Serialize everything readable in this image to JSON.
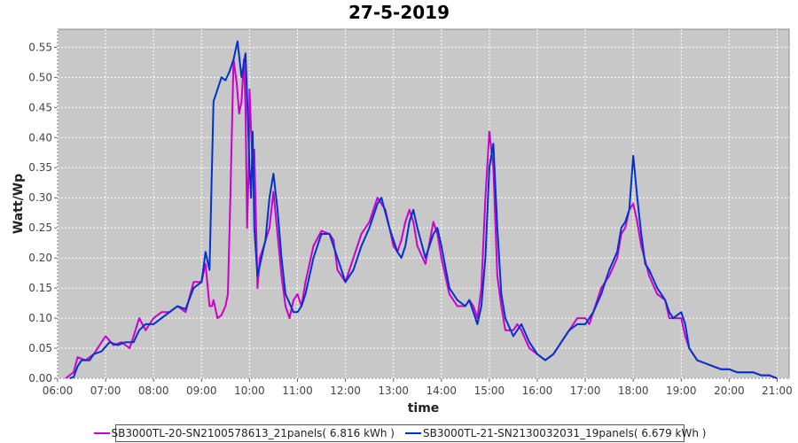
{
  "chart_data": {
    "type": "line",
    "title": "27-5-2019",
    "xlabel": "time",
    "ylabel": "Watt/Wp",
    "xlim": [
      "06:00",
      "21:15"
    ],
    "ylim": [
      0,
      0.58
    ],
    "x_ticks": [
      "06:00",
      "07:00",
      "08:00",
      "09:00",
      "10:00",
      "11:00",
      "12:00",
      "13:00",
      "14:00",
      "15:00",
      "16:00",
      "17:00",
      "18:00",
      "19:00",
      "20:00",
      "21:00"
    ],
    "y_ticks": [
      "0.00",
      "0.05",
      "0.10",
      "0.15",
      "0.20",
      "0.25",
      "0.30",
      "0.35",
      "0.40",
      "0.45",
      "0.50",
      "0.55"
    ],
    "grid": true,
    "background": "#c8c8c8",
    "legend_position": "bottom",
    "series": [
      {
        "name": "SB3000TL-20-SN2100578613_21panels( 6.816 kWh )",
        "color": "#cc00cc",
        "points": [
          [
            "06:10",
            0.0
          ],
          [
            "06:20",
            0.01
          ],
          [
            "06:25",
            0.035
          ],
          [
            "06:35",
            0.03
          ],
          [
            "06:45",
            0.04
          ],
          [
            "06:55",
            0.06
          ],
          [
            "07:00",
            0.07
          ],
          [
            "07:10",
            0.055
          ],
          [
            "07:20",
            0.06
          ],
          [
            "07:30",
            0.05
          ],
          [
            "07:35",
            0.07
          ],
          [
            "07:42",
            0.1
          ],
          [
            "07:50",
            0.08
          ],
          [
            "08:00",
            0.1
          ],
          [
            "08:10",
            0.11
          ],
          [
            "08:20",
            0.11
          ],
          [
            "08:30",
            0.12
          ],
          [
            "08:40",
            0.11
          ],
          [
            "08:50",
            0.16
          ],
          [
            "09:00",
            0.16
          ],
          [
            "09:05",
            0.19
          ],
          [
            "09:10",
            0.12
          ],
          [
            "09:13",
            0.12
          ],
          [
            "09:15",
            0.13
          ],
          [
            "09:20",
            0.1
          ],
          [
            "09:25",
            0.105
          ],
          [
            "09:30",
            0.12
          ],
          [
            "09:33",
            0.14
          ],
          [
            "09:36",
            0.3
          ],
          [
            "09:40",
            0.53
          ],
          [
            "09:44",
            0.49
          ],
          [
            "09:47",
            0.44
          ],
          [
            "09:50",
            0.46
          ],
          [
            "09:53",
            0.53
          ],
          [
            "09:55",
            0.45
          ],
          [
            "09:57",
            0.25
          ],
          [
            "09:59",
            0.35
          ],
          [
            "10:00",
            0.48
          ],
          [
            "10:02",
            0.41
          ],
          [
            "10:04",
            0.35
          ],
          [
            "10:06",
            0.38
          ],
          [
            "10:08",
            0.27
          ],
          [
            "10:10",
            0.15
          ],
          [
            "10:13",
            0.2
          ],
          [
            "10:18",
            0.22
          ],
          [
            "10:25",
            0.25
          ],
          [
            "10:30",
            0.31
          ],
          [
            "10:35",
            0.24
          ],
          [
            "10:40",
            0.17
          ],
          [
            "10:45",
            0.12
          ],
          [
            "10:50",
            0.1
          ],
          [
            "10:55",
            0.13
          ],
          [
            "11:00",
            0.14
          ],
          [
            "11:05",
            0.12
          ],
          [
            "11:10",
            0.16
          ],
          [
            "11:20",
            0.22
          ],
          [
            "11:30",
            0.245
          ],
          [
            "11:40",
            0.24
          ],
          [
            "11:45",
            0.23
          ],
          [
            "11:50",
            0.18
          ],
          [
            "12:00",
            0.16
          ],
          [
            "12:10",
            0.2
          ],
          [
            "12:20",
            0.24
          ],
          [
            "12:30",
            0.26
          ],
          [
            "12:40",
            0.3
          ],
          [
            "12:50",
            0.28
          ],
          [
            "13:00",
            0.22
          ],
          [
            "13:05",
            0.21
          ],
          [
            "13:10",
            0.23
          ],
          [
            "13:15",
            0.26
          ],
          [
            "13:20",
            0.28
          ],
          [
            "13:25",
            0.26
          ],
          [
            "13:30",
            0.22
          ],
          [
            "13:40",
            0.19
          ],
          [
            "13:50",
            0.26
          ],
          [
            "13:55",
            0.24
          ],
          [
            "14:00",
            0.2
          ],
          [
            "14:10",
            0.14
          ],
          [
            "14:20",
            0.12
          ],
          [
            "14:30",
            0.12
          ],
          [
            "14:35",
            0.13
          ],
          [
            "14:40",
            0.12
          ],
          [
            "14:45",
            0.1
          ],
          [
            "14:50",
            0.15
          ],
          [
            "14:55",
            0.3
          ],
          [
            "15:00",
            0.41
          ],
          [
            "15:05",
            0.35
          ],
          [
            "15:10",
            0.17
          ],
          [
            "15:15",
            0.12
          ],
          [
            "15:20",
            0.08
          ],
          [
            "15:30",
            0.08
          ],
          [
            "15:35",
            0.09
          ],
          [
            "15:40",
            0.08
          ],
          [
            "15:50",
            0.05
          ],
          [
            "16:00",
            0.04
          ],
          [
            "16:10",
            0.03
          ],
          [
            "16:20",
            0.04
          ],
          [
            "16:30",
            0.06
          ],
          [
            "16:40",
            0.08
          ],
          [
            "16:50",
            0.1
          ],
          [
            "17:00",
            0.1
          ],
          [
            "17:05",
            0.09
          ],
          [
            "17:10",
            0.11
          ],
          [
            "17:20",
            0.15
          ],
          [
            "17:30",
            0.17
          ],
          [
            "17:40",
            0.2
          ],
          [
            "17:45",
            0.24
          ],
          [
            "17:50",
            0.25
          ],
          [
            "17:55",
            0.28
          ],
          [
            "18:00",
            0.29
          ],
          [
            "18:05",
            0.26
          ],
          [
            "18:10",
            0.22
          ],
          [
            "18:20",
            0.17
          ],
          [
            "18:30",
            0.14
          ],
          [
            "18:40",
            0.13
          ],
          [
            "18:45",
            0.1
          ],
          [
            "18:50",
            0.1
          ],
          [
            "19:00",
            0.1
          ],
          [
            "19:05",
            0.07
          ],
          [
            "19:10",
            0.05
          ],
          [
            "19:20",
            0.03
          ],
          [
            "19:30",
            0.025
          ],
          [
            "19:40",
            0.02
          ],
          [
            "19:50",
            0.015
          ],
          [
            "20:00",
            0.015
          ],
          [
            "20:10",
            0.01
          ],
          [
            "20:20",
            0.01
          ],
          [
            "20:30",
            0.01
          ],
          [
            "20:40",
            0.005
          ],
          [
            "20:50",
            0.005
          ],
          [
            "21:00",
            0.0
          ]
        ]
      },
      {
        "name": "SB3000TL-21-SN2130032031_19panels( 6.679 kWh )",
        "color": "#0033cc",
        "points": [
          [
            "06:15",
            0.0
          ],
          [
            "06:20",
            0.002
          ],
          [
            "06:25",
            0.02
          ],
          [
            "06:30",
            0.03
          ],
          [
            "06:40",
            0.03
          ],
          [
            "06:45",
            0.04
          ],
          [
            "06:55",
            0.045
          ],
          [
            "07:05",
            0.06
          ],
          [
            "07:15",
            0.055
          ],
          [
            "07:25",
            0.06
          ],
          [
            "07:35",
            0.06
          ],
          [
            "07:42",
            0.08
          ],
          [
            "07:50",
            0.09
          ],
          [
            "08:00",
            0.09
          ],
          [
            "08:10",
            0.1
          ],
          [
            "08:20",
            0.11
          ],
          [
            "08:30",
            0.12
          ],
          [
            "08:40",
            0.115
          ],
          [
            "08:50",
            0.15
          ],
          [
            "09:00",
            0.16
          ],
          [
            "09:05",
            0.21
          ],
          [
            "09:10",
            0.18
          ],
          [
            "09:15",
            0.46
          ],
          [
            "09:20",
            0.48
          ],
          [
            "09:25",
            0.5
          ],
          [
            "09:30",
            0.495
          ],
          [
            "09:35",
            0.51
          ],
          [
            "09:40",
            0.53
          ],
          [
            "09:45",
            0.56
          ],
          [
            "09:50",
            0.5
          ],
          [
            "09:55",
            0.54
          ],
          [
            "09:58",
            0.43
          ],
          [
            "10:00",
            0.35
          ],
          [
            "10:02",
            0.3
          ],
          [
            "10:04",
            0.41
          ],
          [
            "10:06",
            0.25
          ],
          [
            "10:10",
            0.17
          ],
          [
            "10:15",
            0.2
          ],
          [
            "10:20",
            0.23
          ],
          [
            "10:25",
            0.3
          ],
          [
            "10:30",
            0.34
          ],
          [
            "10:35",
            0.28
          ],
          [
            "10:40",
            0.2
          ],
          [
            "10:45",
            0.14
          ],
          [
            "10:55",
            0.11
          ],
          [
            "11:00",
            0.11
          ],
          [
            "11:05",
            0.12
          ],
          [
            "11:10",
            0.14
          ],
          [
            "11:20",
            0.2
          ],
          [
            "11:30",
            0.24
          ],
          [
            "11:40",
            0.24
          ],
          [
            "11:50",
            0.2
          ],
          [
            "12:00",
            0.16
          ],
          [
            "12:10",
            0.18
          ],
          [
            "12:20",
            0.22
          ],
          [
            "12:30",
            0.25
          ],
          [
            "12:40",
            0.29
          ],
          [
            "12:45",
            0.3
          ],
          [
            "12:55",
            0.25
          ],
          [
            "13:05",
            0.21
          ],
          [
            "13:10",
            0.2
          ],
          [
            "13:15",
            0.22
          ],
          [
            "13:20",
            0.26
          ],
          [
            "13:25",
            0.28
          ],
          [
            "13:30",
            0.25
          ],
          [
            "13:40",
            0.2
          ],
          [
            "13:50",
            0.24
          ],
          [
            "13:55",
            0.25
          ],
          [
            "14:00",
            0.22
          ],
          [
            "14:10",
            0.15
          ],
          [
            "14:20",
            0.13
          ],
          [
            "14:30",
            0.12
          ],
          [
            "14:35",
            0.13
          ],
          [
            "14:40",
            0.11
          ],
          [
            "14:45",
            0.09
          ],
          [
            "14:50",
            0.12
          ],
          [
            "14:55",
            0.2
          ],
          [
            "15:00",
            0.35
          ],
          [
            "15:05",
            0.39
          ],
          [
            "15:10",
            0.25
          ],
          [
            "15:15",
            0.14
          ],
          [
            "15:20",
            0.1
          ],
          [
            "15:30",
            0.07
          ],
          [
            "15:35",
            0.08
          ],
          [
            "15:40",
            0.09
          ],
          [
            "15:50",
            0.06
          ],
          [
            "16:00",
            0.04
          ],
          [
            "16:10",
            0.03
          ],
          [
            "16:20",
            0.04
          ],
          [
            "16:30",
            0.06
          ],
          [
            "16:40",
            0.08
          ],
          [
            "16:50",
            0.09
          ],
          [
            "17:00",
            0.09
          ],
          [
            "17:10",
            0.11
          ],
          [
            "17:20",
            0.14
          ],
          [
            "17:30",
            0.18
          ],
          [
            "17:40",
            0.21
          ],
          [
            "17:45",
            0.25
          ],
          [
            "17:50",
            0.26
          ],
          [
            "17:55",
            0.28
          ],
          [
            "18:00",
            0.37
          ],
          [
            "18:05",
            0.3
          ],
          [
            "18:10",
            0.24
          ],
          [
            "18:15",
            0.19
          ],
          [
            "18:20",
            0.18
          ],
          [
            "18:30",
            0.15
          ],
          [
            "18:40",
            0.13
          ],
          [
            "18:45",
            0.11
          ],
          [
            "18:50",
            0.1
          ],
          [
            "19:00",
            0.11
          ],
          [
            "19:05",
            0.09
          ],
          [
            "19:10",
            0.05
          ],
          [
            "19:20",
            0.03
          ],
          [
            "19:30",
            0.025
          ],
          [
            "19:40",
            0.02
          ],
          [
            "19:50",
            0.015
          ],
          [
            "20:00",
            0.015
          ],
          [
            "20:10",
            0.01
          ],
          [
            "20:20",
            0.01
          ],
          [
            "20:30",
            0.01
          ],
          [
            "20:40",
            0.005
          ],
          [
            "20:50",
            0.005
          ],
          [
            "21:00",
            0.0
          ]
        ]
      }
    ]
  }
}
